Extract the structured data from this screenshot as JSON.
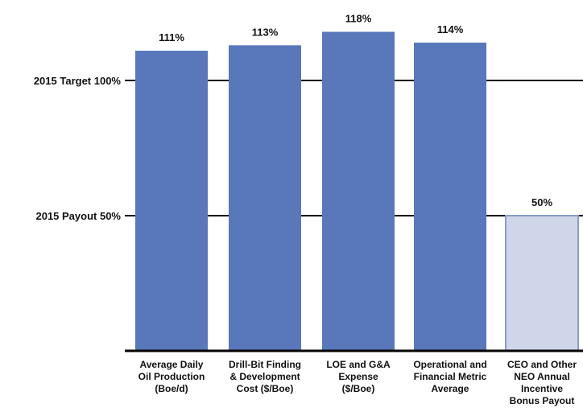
{
  "chart_data": {
    "type": "bar",
    "categories": [
      [
        "Average Daily",
        "Oil Production",
        "(Boe/d)"
      ],
      [
        "Drill-Bit Finding",
        "& Development",
        "Cost ($/Boe)"
      ],
      [
        "LOE and G&A",
        "Expense",
        "($/Boe)"
      ],
      [
        "Operational and",
        "Financial Metric",
        "Average"
      ],
      [
        "CEO and Other",
        "NEO Annual",
        "Incentive",
        "Bonus Payout"
      ]
    ],
    "values": [
      111,
      113,
      118,
      114,
      50
    ],
    "data_labels": [
      "111%",
      "113%",
      "118%",
      "114%",
      "50%"
    ],
    "reference_lines": [
      {
        "label": "2015 Target 100%",
        "value": 100
      },
      {
        "label": "2015 Payout 50%",
        "value": 50
      }
    ],
    "ylim": [
      0,
      120
    ],
    "grid": false,
    "colors": {
      "bar": "#5878bb",
      "highlight_bar": "#d0d6ea",
      "highlight_border": "#8a9cc8",
      "axis": "#000000"
    }
  }
}
